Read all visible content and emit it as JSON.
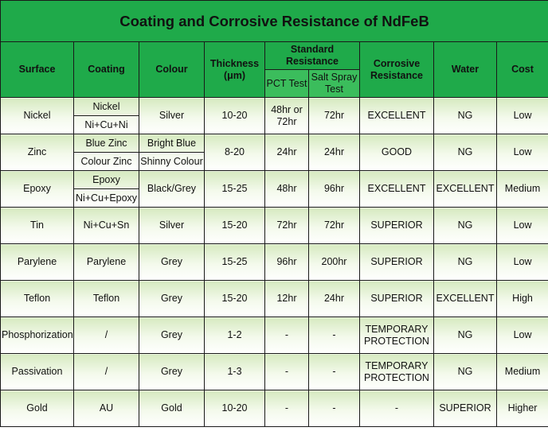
{
  "title": "Coating and Corrosive Resistance of NdFeB",
  "headers": {
    "surface": "Surface",
    "coating": "Coating",
    "colour": "Colour",
    "thickness": "Thickness (μm)",
    "standard_resistance": "Standard Resistance",
    "pct_test": "PCT Test",
    "salt_spray_test": "Salt Spray Test",
    "corrosive_resistance": "Corrosive Resistance",
    "water": "Water",
    "cost": "Cost"
  },
  "rows": [
    {
      "surface": "Nickel",
      "coatings": [
        "Nickel",
        "Ni+Cu+Ni"
      ],
      "colours": [
        "Silver"
      ],
      "thickness": "10-20",
      "pct": "48hr or 72hr",
      "salt": "72hr",
      "corrosive": "EXCELLENT",
      "water": "NG",
      "cost": "Low"
    },
    {
      "surface": "Zinc",
      "coatings": [
        "Blue Zinc",
        "Colour Zinc"
      ],
      "colours": [
        "Bright Blue",
        "Shinny Colour"
      ],
      "thickness": "8-20",
      "pct": "24hr",
      "salt": "24hr",
      "corrosive": "GOOD",
      "water": "NG",
      "cost": "Low"
    },
    {
      "surface": "Epoxy",
      "coatings": [
        "Epoxy",
        "Ni+Cu+Epoxy"
      ],
      "colours": [
        "Black/Grey"
      ],
      "thickness": "15-25",
      "pct": "48hr",
      "salt": "96hr",
      "corrosive": "EXCELLENT",
      "water": "EXCELLENT",
      "cost": "Medium"
    },
    {
      "surface": "Tin",
      "coatings": [
        "Ni+Cu+Sn"
      ],
      "colours": [
        "Silver"
      ],
      "thickness": "15-20",
      "pct": "72hr",
      "salt": "72hr",
      "corrosive": "SUPERIOR",
      "water": "NG",
      "cost": "Low"
    },
    {
      "surface": "Parylene",
      "coatings": [
        "Parylene"
      ],
      "colours": [
        "Grey"
      ],
      "thickness": "15-25",
      "pct": "96hr",
      "salt": "200hr",
      "corrosive": "SUPERIOR",
      "water": "NG",
      "cost": "Low"
    },
    {
      "surface": "Teflon",
      "coatings": [
        "Teflon"
      ],
      "colours": [
        "Grey"
      ],
      "thickness": "15-20",
      "pct": "12hr",
      "salt": "24hr",
      "corrosive": "SUPERIOR",
      "water": "EXCELLENT",
      "cost": "High"
    },
    {
      "surface": "Phosphorization",
      "coatings": [
        "/"
      ],
      "colours": [
        "Grey"
      ],
      "thickness": "1-2",
      "pct": "-",
      "salt": "-",
      "corrosive": "TEMPORARY PROTECTION",
      "water": "NG",
      "cost": "Low"
    },
    {
      "surface": "Passivation",
      "coatings": [
        "/"
      ],
      "colours": [
        "Grey"
      ],
      "thickness": "1-3",
      "pct": "-",
      "salt": "-",
      "corrosive": "TEMPORARY PROTECTION",
      "water": "NG",
      "cost": "Medium"
    },
    {
      "surface": "Gold",
      "coatings": [
        "AU"
      ],
      "colours": [
        "Gold"
      ],
      "thickness": "10-20",
      "pct": "-",
      "salt": "-",
      "corrosive": "-",
      "water": "SUPERIOR",
      "cost": "Higher"
    }
  ],
  "colors": {
    "header_green": "#1faa4a",
    "row_gradient_top": "#d9ecc4",
    "row_gradient_bottom": "#ffffff",
    "border": "#1a1a1a"
  }
}
